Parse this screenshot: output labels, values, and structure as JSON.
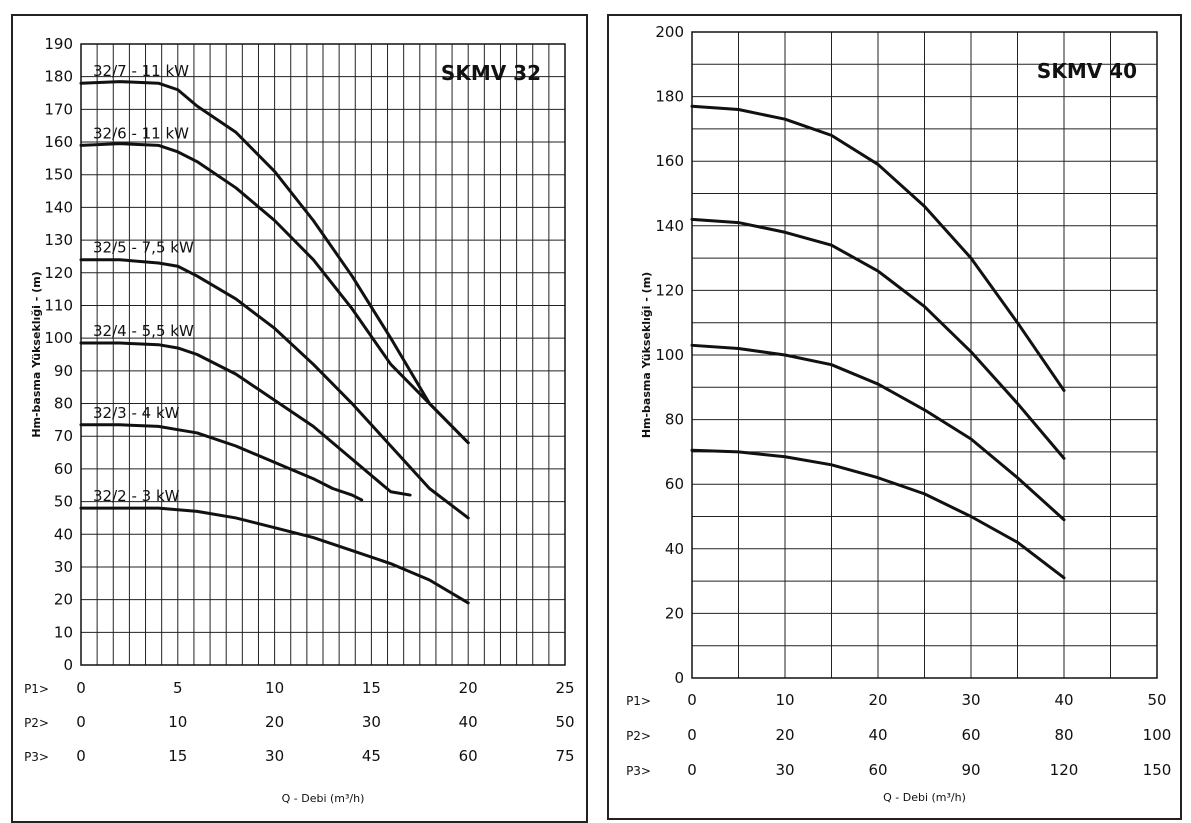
{
  "chart_data": [
    {
      "type": "line",
      "title": "SKMV 32",
      "ylabel": "Hm-basma Yükseklıği - (m)",
      "xlabel": "Q - Debi (m³/h)",
      "ylim": [
        0,
        190
      ],
      "yticks": [
        0,
        10,
        20,
        30,
        40,
        50,
        60,
        70,
        80,
        90,
        100,
        110,
        120,
        130,
        140,
        150,
        160,
        170,
        180,
        190
      ],
      "xlim": [
        0,
        25
      ],
      "grid": true,
      "x_scales": [
        {
          "label": "P1>",
          "ticks": [
            "0",
            "5",
            "10",
            "15",
            "20",
            "25"
          ]
        },
        {
          "label": "P2>",
          "ticks": [
            "0",
            "10",
            "20",
            "30",
            "40",
            "50"
          ]
        },
        {
          "label": "P3>",
          "ticks": [
            "0",
            "15",
            "30",
            "45",
            "60",
            "75"
          ]
        }
      ],
      "series": [
        {
          "name": "32/7 - 11 kW",
          "x": [
            0,
            2,
            4,
            5,
            6,
            8,
            10,
            12,
            14,
            16,
            18,
            20
          ],
          "y": [
            178,
            178.5,
            178,
            176,
            171,
            163,
            151,
            136,
            119,
            100,
            80,
            68
          ]
        },
        {
          "name": "32/6 - 11 kW",
          "x": [
            0,
            2,
            4,
            5,
            6,
            8,
            10,
            12,
            14,
            16,
            18,
            20
          ],
          "y": [
            159,
            159.5,
            159,
            157,
            154,
            146,
            136,
            124,
            109,
            92,
            80,
            68
          ]
        },
        {
          "name": "32/5 - 7,5 kW",
          "x": [
            0,
            2,
            4,
            5,
            6,
            8,
            10,
            12,
            14,
            16,
            18,
            20
          ],
          "y": [
            124,
            124,
            123,
            122,
            119,
            112,
            103,
            92,
            80,
            67,
            54,
            45
          ]
        },
        {
          "name": "32/4 - 5,5 kW",
          "x": [
            0,
            2,
            4,
            5,
            6,
            8,
            10,
            12,
            14,
            16,
            17
          ],
          "y": [
            98.5,
            98.5,
            98,
            97,
            95,
            89,
            81,
            73,
            63,
            53,
            52
          ]
        },
        {
          "name": "32/3 - 4 kW",
          "x": [
            0,
            2,
            4,
            5,
            6,
            8,
            10,
            12,
            13,
            14,
            14.5
          ],
          "y": [
            73.5,
            73.5,
            73,
            72,
            71,
            67,
            62,
            57,
            54,
            52,
            50.5
          ]
        },
        {
          "name": "32/2 - 3 kW",
          "x": [
            0,
            2,
            4,
            5,
            6,
            8,
            10,
            12,
            14,
            16,
            18,
            20
          ],
          "y": [
            48,
            48,
            48,
            47.5,
            47,
            45,
            42,
            39,
            35,
            31,
            26,
            19
          ]
        }
      ]
    },
    {
      "type": "line",
      "title": "SKMV 40",
      "ylabel": "Hm-basma Yükseklıği - (m)",
      "xlabel": "Q - Debi (m³/h)",
      "ylim": [
        0,
        200
      ],
      "yticks": [
        0,
        20,
        40,
        60,
        80,
        100,
        120,
        140,
        160,
        180,
        200
      ],
      "xlim": [
        0,
        50
      ],
      "grid": true,
      "x_scales": [
        {
          "label": "P1>",
          "ticks": [
            "0",
            "10",
            "20",
            "30",
            "40",
            "50"
          ]
        },
        {
          "label": "P2>",
          "ticks": [
            "0",
            "20",
            "40",
            "60",
            "80",
            "100"
          ]
        },
        {
          "label": "P3>",
          "ticks": [
            "0",
            "30",
            "60",
            "90",
            "120",
            "150"
          ]
        }
      ],
      "series": [
        {
          "x": [
            0,
            5,
            10,
            15,
            20,
            25,
            30,
            35,
            40
          ],
          "y": [
            177,
            176,
            173,
            168,
            159,
            146,
            130,
            110,
            89
          ]
        },
        {
          "x": [
            0,
            5,
            10,
            15,
            20,
            25,
            30,
            35,
            40
          ],
          "y": [
            142,
            141,
            138,
            134,
            126,
            115,
            101,
            85,
            68
          ]
        },
        {
          "x": [
            0,
            5,
            10,
            15,
            20,
            25,
            30,
            35,
            40
          ],
          "y": [
            103,
            102,
            100,
            97,
            91,
            83,
            74,
            62,
            49
          ]
        },
        {
          "x": [
            0,
            5,
            10,
            15,
            20,
            25,
            30,
            35,
            40
          ],
          "y": [
            70.5,
            70,
            68.5,
            66,
            62,
            57,
            50,
            42,
            31
          ]
        }
      ]
    }
  ]
}
